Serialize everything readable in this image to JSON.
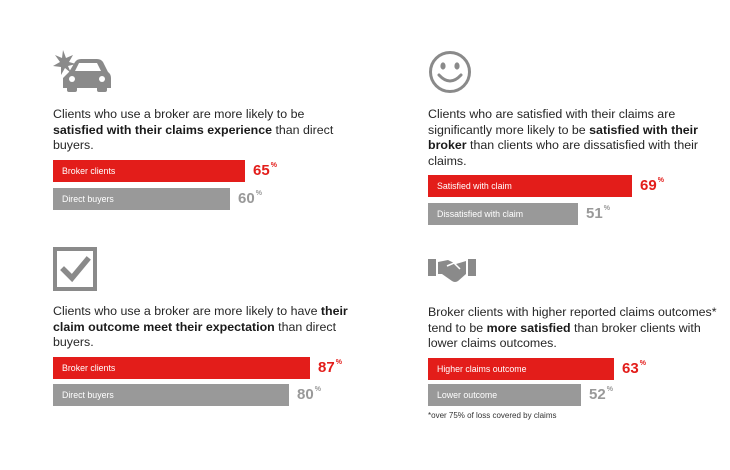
{
  "colors": {
    "highlight": "#e31d1a",
    "muted": "#999999",
    "icon": "#8a8a8a"
  },
  "chart_data": [
    {
      "type": "bar",
      "icon": "car-crash-icon",
      "description": [
        {
          "text": "Clients who use a broker are more likely to be ",
          "bold": false
        },
        {
          "text": "satisfied with their claims experience",
          "bold": true
        },
        {
          "text": " than direct buyers.",
          "bold": false
        }
      ],
      "categories": [
        "Broker clients",
        "Direct buyers"
      ],
      "values": [
        65,
        60
      ],
      "value_labels": [
        "65",
        "60"
      ],
      "unit": "%"
    },
    {
      "type": "bar",
      "icon": "smiley-face-icon",
      "description": [
        {
          "text": "Clients who are satisfied with their claims are significantly more likely to be ",
          "bold": false
        },
        {
          "text": "satisfied with their broker",
          "bold": true
        },
        {
          "text": " than clients who are dissatisfied with their claims.",
          "bold": false
        }
      ],
      "categories": [
        "Satisfied with claim",
        "Dissatisfied with claim"
      ],
      "values": [
        69,
        51
      ],
      "value_labels": [
        "69",
        "51"
      ],
      "unit": "%"
    },
    {
      "type": "bar",
      "icon": "checkbox-icon",
      "description": [
        {
          "text": "Clients who use a broker are more likely to have ",
          "bold": false
        },
        {
          "text": "their claim outcome meet their expectation",
          "bold": true
        },
        {
          "text": " than direct buyers.",
          "bold": false
        }
      ],
      "categories": [
        "Broker clients",
        "Direct buyers"
      ],
      "values": [
        87,
        80
      ],
      "value_labels": [
        "87",
        "80"
      ],
      "unit": "%"
    },
    {
      "type": "bar",
      "icon": "handshake-icon",
      "description": [
        {
          "text": "Broker clients with higher reported claims outcomes* tend to be ",
          "bold": false
        },
        {
          "text": "more satisfied",
          "bold": true
        },
        {
          "text": " than broker clients with lower claims outcomes.",
          "bold": false
        }
      ],
      "categories": [
        "Higher claims outcome",
        "Lower outcome"
      ],
      "values": [
        63,
        52
      ],
      "value_labels": [
        "63",
        "52"
      ],
      "unit": "%"
    }
  ],
  "footnote": "*over 75% of loss covered by claims"
}
